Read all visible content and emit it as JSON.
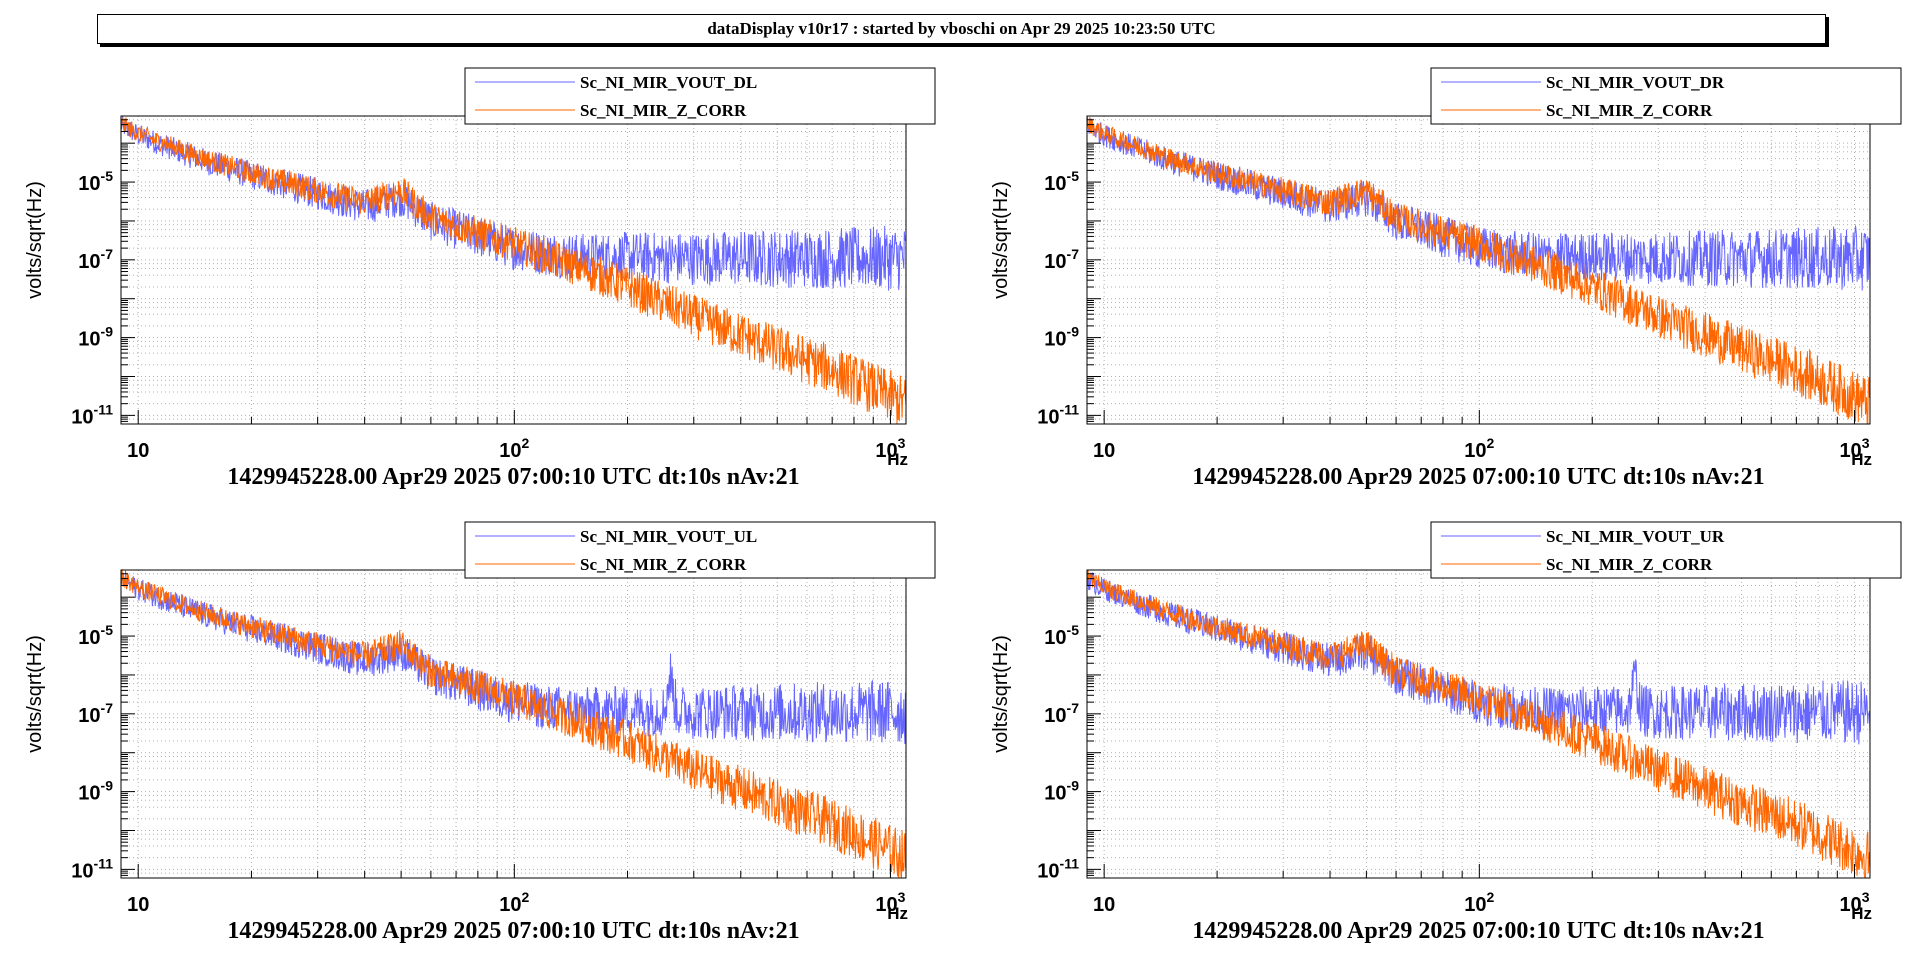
{
  "banner": {
    "title": "dataDisplay v10r17 : started by vboschi on Apr 29 2025 10:23:50 UTC"
  },
  "colors": {
    "vout": "#6666ff",
    "zcorr": "#ff6600",
    "frame": "#000000",
    "grid": "#b0b0b0"
  },
  "chart_data": [
    {
      "type": "line",
      "title": "",
      "xlabel": "Hz",
      "ylabel": "volts/sqrt(Hz)",
      "xscale": "log",
      "yscale": "log",
      "xlim": [
        9,
        1100
      ],
      "ylim": [
        6e-12,
        0.0005
      ],
      "grid": true,
      "legend_position": "top",
      "x_tick_labels": [
        "10",
        "10^2",
        "10^3"
      ],
      "y_tick_labels": [
        "10^-11",
        "10^-9",
        "10^-7",
        "10^-5"
      ],
      "footer": "1429945228.00 Apr29 2025 07:00:10 UTC dt:10s nAv:21",
      "series": [
        {
          "name": "Sc_NI_MIR_VOUT_DL",
          "x": [
            9,
            10,
            12,
            15,
            20,
            30,
            40,
            50,
            60,
            80,
            100,
            120,
            150,
            200,
            300,
            500,
            700,
            1100
          ],
          "y": [
            0.0003,
            0.00016,
            8e-05,
            3.5e-05,
            1.5e-05,
            5e-06,
            2.3e-06,
            4e-06,
            1e-06,
            4e-07,
            2e-07,
            1.5e-07,
            1.2e-07,
            1.2e-07,
            1.1e-07,
            1.1e-07,
            1.1e-07,
            1.1e-07
          ]
        },
        {
          "name": "Sc_NI_MIR_Z_CORR",
          "x": [
            9,
            10,
            12,
            15,
            20,
            30,
            40,
            50,
            60,
            80,
            100,
            120,
            150,
            200,
            300,
            500,
            700,
            1100
          ],
          "y": [
            0.00032,
            0.00018,
            9e-05,
            4e-05,
            1.7e-05,
            6e-06,
            3e-06,
            6e-06,
            1.2e-06,
            5e-07,
            2.5e-07,
            1.3e-07,
            6e-08,
            2e-08,
            3.5e-09,
            5e-10,
            1.5e-10,
            2e-11
          ]
        }
      ]
    },
    {
      "type": "line",
      "title": "",
      "xlabel": "Hz",
      "ylabel": "volts/sqrt(Hz)",
      "xscale": "log",
      "yscale": "log",
      "xlim": [
        9,
        1100
      ],
      "ylim": [
        6e-12,
        0.0005
      ],
      "grid": true,
      "legend_position": "top",
      "x_tick_labels": [
        "10",
        "10^2",
        "10^3"
      ],
      "y_tick_labels": [
        "10^-11",
        "10^-9",
        "10^-7",
        "10^-5"
      ],
      "footer": "1429945228.00 Apr29 2025 07:00:10 UTC dt:10s nAv:21",
      "series": [
        {
          "name": "Sc_NI_MIR_VOUT_DR",
          "x": [
            9,
            10,
            12,
            15,
            20,
            30,
            40,
            50,
            60,
            80,
            100,
            120,
            150,
            200,
            300,
            500,
            700,
            1100
          ],
          "y": [
            0.0003,
            0.00016,
            8e-05,
            3.5e-05,
            1.5e-05,
            5e-06,
            2.3e-06,
            4e-06,
            1e-06,
            4e-07,
            2e-07,
            1.5e-07,
            1.2e-07,
            1.2e-07,
            1.1e-07,
            1.1e-07,
            1.1e-07,
            1.1e-07
          ]
        },
        {
          "name": "Sc_NI_MIR_Z_CORR",
          "x": [
            9,
            10,
            12,
            15,
            20,
            30,
            40,
            50,
            60,
            80,
            100,
            120,
            150,
            200,
            300,
            500,
            700,
            1100
          ],
          "y": [
            0.00032,
            0.00018,
            9e-05,
            4e-05,
            1.7e-05,
            6e-06,
            3e-06,
            6e-06,
            1.2e-06,
            5e-07,
            2.5e-07,
            1.3e-07,
            6e-08,
            2e-08,
            3.5e-09,
            5e-10,
            1.5e-10,
            2e-11
          ]
        }
      ]
    },
    {
      "type": "line",
      "title": "",
      "xlabel": "Hz",
      "ylabel": "volts/sqrt(Hz)",
      "xscale": "log",
      "yscale": "log",
      "xlim": [
        9,
        1100
      ],
      "ylim": [
        6e-12,
        0.0005
      ],
      "grid": true,
      "legend_position": "top",
      "x_tick_labels": [
        "10",
        "10^2",
        "10^3"
      ],
      "y_tick_labels": [
        "10^-11",
        "10^-9",
        "10^-7",
        "10^-5"
      ],
      "footer": "1429945228.00 Apr29 2025 07:00:10 UTC dt:10s nAv:21",
      "series": [
        {
          "name": "Sc_NI_MIR_VOUT_UL",
          "x": [
            9,
            10,
            12,
            15,
            20,
            30,
            40,
            50,
            60,
            80,
            100,
            120,
            150,
            200,
            250,
            260,
            270,
            300,
            500,
            700,
            1100
          ],
          "y": [
            0.0003,
            0.00016,
            8e-05,
            3.5e-05,
            1.5e-05,
            5e-06,
            2.3e-06,
            4e-06,
            1e-06,
            4e-07,
            2e-07,
            1.5e-07,
            1.2e-07,
            1.2e-07,
            1.2e-07,
            1e-06,
            1.2e-07,
            1.1e-07,
            1.1e-07,
            1.1e-07,
            1.1e-07
          ]
        },
        {
          "name": "Sc_NI_MIR_Z_CORR",
          "x": [
            9,
            10,
            12,
            15,
            20,
            30,
            40,
            50,
            60,
            80,
            100,
            120,
            150,
            200,
            300,
            500,
            700,
            1100
          ],
          "y": [
            0.00032,
            0.00018,
            9e-05,
            4e-05,
            1.7e-05,
            6e-06,
            3e-06,
            6e-06,
            1.2e-06,
            5e-07,
            2.5e-07,
            1.3e-07,
            6e-08,
            2e-08,
            3.5e-09,
            5e-10,
            1.5e-10,
            2e-11
          ]
        }
      ]
    },
    {
      "type": "line",
      "title": "",
      "xlabel": "Hz",
      "ylabel": "volts/sqrt(Hz)",
      "xscale": "log",
      "yscale": "log",
      "xlim": [
        9,
        1100
      ],
      "ylim": [
        6e-12,
        0.0005
      ],
      "grid": true,
      "legend_position": "top",
      "x_tick_labels": [
        "10",
        "10^2",
        "10^3"
      ],
      "y_tick_labels": [
        "10^-11",
        "10^-9",
        "10^-7",
        "10^-5"
      ],
      "footer": "1429945228.00 Apr29 2025 07:00:10 UTC dt:10s nAv:21",
      "series": [
        {
          "name": "Sc_NI_MIR_VOUT_UR",
          "x": [
            9,
            10,
            12,
            15,
            20,
            30,
            40,
            50,
            60,
            80,
            100,
            120,
            150,
            200,
            250,
            260,
            270,
            300,
            500,
            700,
            1100
          ],
          "y": [
            0.0003,
            0.00016,
            8e-05,
            3.5e-05,
            1.5e-05,
            5e-06,
            2.3e-06,
            4e-06,
            1e-06,
            4e-07,
            2e-07,
            1.5e-07,
            1.2e-07,
            1.2e-07,
            1.2e-07,
            1e-06,
            1.2e-07,
            1.1e-07,
            1.1e-07,
            1.1e-07,
            1.1e-07
          ]
        },
        {
          "name": "Sc_NI_MIR_Z_CORR",
          "x": [
            9,
            10,
            12,
            15,
            20,
            30,
            40,
            50,
            60,
            80,
            100,
            120,
            150,
            200,
            300,
            500,
            700,
            1100
          ],
          "y": [
            0.00032,
            0.00018,
            9e-05,
            4e-05,
            1.7e-05,
            6e-06,
            3e-06,
            6e-06,
            1.2e-06,
            5e-07,
            2.5e-07,
            1.3e-07,
            6e-08,
            2e-08,
            3.5e-09,
            5e-10,
            1.5e-10,
            2e-11
          ]
        }
      ]
    }
  ]
}
